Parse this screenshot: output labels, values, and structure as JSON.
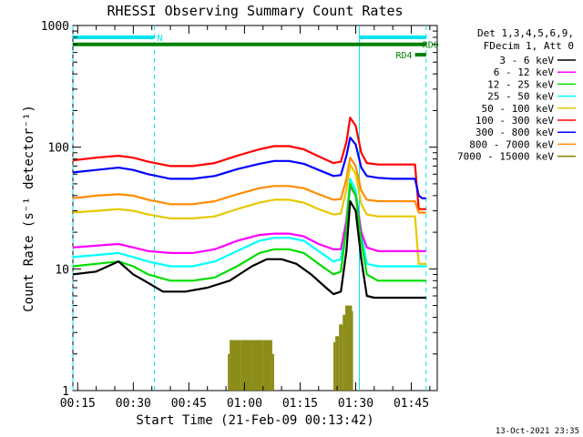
{
  "chart_data": {
    "type": "line",
    "title": "RHESSI Observing Summary Count Rates",
    "xlabel": "Start Time (21-Feb-09 00:13:42)",
    "ylabel": "Count Rate (s⁻¹ detector⁻¹)",
    "y_scale": "log",
    "ylim": [
      1,
      1000
    ],
    "y_ticks": [
      1,
      10,
      100,
      1000
    ],
    "y_tick_labels": [
      "1",
      "10",
      "100",
      "1000"
    ],
    "xlim_minutes": [
      13.7,
      112
    ],
    "x_ticks_minutes": [
      15,
      30,
      45,
      60,
      75,
      90,
      105
    ],
    "x_tick_labels": [
      "00:15",
      "00:30",
      "00:45",
      "01:00",
      "01:15",
      "01:30",
      "01:45"
    ],
    "grid": false,
    "legend_placement": "right, outside plot",
    "legend_header": [
      "Det 1,3,4,5,6,9,",
      "FDecim 1, Att 0"
    ],
    "series": [
      {
        "name": "3 - 6 keV",
        "color": "#000000",
        "x": [
          13.7,
          20,
          26,
          30,
          33,
          38,
          44,
          50,
          56,
          62,
          66,
          70,
          74,
          78,
          82,
          84,
          86,
          87.5,
          88.5,
          90,
          91.5,
          93,
          95,
          98,
          102,
          106,
          108,
          109
        ],
        "y": [
          9,
          9.5,
          11.5,
          9,
          8,
          6.5,
          6.5,
          7,
          8,
          10.5,
          12,
          12,
          11,
          9,
          7,
          6.2,
          6.5,
          14,
          36,
          30,
          12,
          6,
          5.8,
          5.8,
          5.8,
          5.8,
          5.8,
          5.8
        ]
      },
      {
        "name": "6 - 12 keV",
        "color": "#ff00ff",
        "x": [
          13.7,
          20,
          26,
          30,
          34,
          40,
          46,
          52,
          58,
          64,
          68,
          72,
          76,
          80,
          84,
          86,
          87.5,
          88.5,
          90,
          91.5,
          93,
          96,
          100,
          104,
          108,
          109
        ],
        "y": [
          15,
          15.5,
          16,
          15,
          14,
          13.5,
          13.5,
          14.5,
          17,
          19,
          19.5,
          19.5,
          18.5,
          16,
          14.5,
          14.5,
          25,
          48,
          40,
          20,
          15,
          14,
          14,
          14,
          14,
          14
        ]
      },
      {
        "name": "12 - 25 keV",
        "color": "#00dd00",
        "x": [
          13.7,
          20,
          26,
          30,
          34,
          40,
          46,
          52,
          58,
          64,
          68,
          72,
          76,
          80,
          84,
          86,
          87.5,
          88.5,
          90,
          91.5,
          93,
          96,
          100,
          104,
          108,
          109
        ],
        "y": [
          10.5,
          11,
          11.5,
          10.5,
          9,
          8,
          8,
          8.5,
          10.5,
          13.5,
          14.5,
          14.5,
          13.5,
          11,
          9,
          9.5,
          22,
          50,
          40,
          17,
          9,
          8,
          8,
          8,
          8,
          8
        ]
      },
      {
        "name": "25 - 50 keV",
        "color": "#00ffff",
        "x": [
          13.7,
          20,
          26,
          30,
          34,
          40,
          46,
          52,
          58,
          64,
          68,
          72,
          76,
          80,
          84,
          86,
          87.5,
          88.5,
          90,
          91.5,
          93,
          96,
          100,
          104,
          108,
          109
        ],
        "y": [
          12.5,
          13,
          13.5,
          12.5,
          11.5,
          10.5,
          10.5,
          11.5,
          14,
          17,
          18,
          18,
          17,
          14,
          11.5,
          12,
          25,
          55,
          44,
          20,
          11,
          10.5,
          10.5,
          10.5,
          10.5,
          10.5
        ]
      },
      {
        "name": "50 - 100 keV",
        "color": "#e6c800",
        "x": [
          13.7,
          20,
          26,
          30,
          34,
          40,
          46,
          52,
          58,
          64,
          68,
          72,
          76,
          80,
          84,
          86,
          87.5,
          88.5,
          90,
          91.5,
          93,
          96,
          100,
          104,
          106,
          107,
          108,
          109
        ],
        "y": [
          29,
          30,
          31,
          30,
          28,
          26,
          26,
          27,
          31,
          35,
          37,
          37,
          35,
          31,
          28,
          28.5,
          45,
          72,
          60,
          34,
          28,
          27,
          27,
          27,
          27,
          11,
          11,
          11
        ]
      },
      {
        "name": "100 - 300 keV",
        "color": "#ff0000",
        "x": [
          13.7,
          20,
          26,
          30,
          34,
          40,
          46,
          52,
          58,
          64,
          68,
          72,
          76,
          80,
          84,
          86,
          87.5,
          88.5,
          90,
          91.5,
          93,
          96,
          100,
          104,
          106,
          107,
          108,
          109
        ],
        "y": [
          78,
          82,
          85,
          82,
          76,
          70,
          70,
          74,
          85,
          96,
          102,
          102,
          96,
          84,
          74,
          76,
          110,
          175,
          150,
          90,
          74,
          72,
          72,
          72,
          72,
          31,
          31,
          31
        ]
      },
      {
        "name": "300 - 800 keV",
        "color": "#0000ff",
        "x": [
          13.7,
          20,
          26,
          30,
          34,
          40,
          46,
          52,
          58,
          64,
          68,
          72,
          76,
          80,
          84,
          86,
          87.5,
          88.5,
          90,
          91.5,
          93,
          96,
          100,
          104,
          106,
          107,
          108,
          109
        ],
        "y": [
          62,
          65,
          68,
          65,
          60,
          55,
          55,
          58,
          66,
          73,
          77,
          77,
          73,
          65,
          58,
          59,
          85,
          120,
          105,
          68,
          58,
          56,
          55,
          55,
          55,
          40,
          38,
          38
        ]
      },
      {
        "name": "800 - 7000 keV",
        "color": "#ff8c00",
        "x": [
          13.7,
          20,
          26,
          30,
          34,
          40,
          46,
          52,
          58,
          64,
          68,
          72,
          76,
          80,
          84,
          86,
          87.5,
          88.5,
          90,
          91.5,
          93,
          96,
          100,
          104,
          106,
          107,
          108,
          109
        ],
        "y": [
          38,
          40,
          41,
          40,
          37,
          34,
          34,
          36,
          41,
          46,
          48,
          48,
          46,
          41,
          37,
          37.5,
          55,
          82,
          70,
          44,
          37,
          36,
          36,
          36,
          36,
          29,
          29,
          29
        ]
      },
      {
        "name": "7000 - 15000 keV",
        "color": "#808000",
        "x": [
          13.7,
          55.5,
          56,
          59,
          62,
          65,
          67.5,
          68,
          84,
          84.5,
          85.5,
          86.5,
          87.2,
          87.8,
          88.3,
          89,
          89.3,
          109
        ],
        "y": [
          1,
          1,
          2,
          2.6,
          2.6,
          2.6,
          2,
          1,
          1,
          2.5,
          2.8,
          3.5,
          4.2,
          5,
          5,
          4.5,
          1,
          1
        ]
      }
    ],
    "annotations": [
      {
        "label": "N",
        "color": "#00e5ee",
        "x_start_minutes": 13.7,
        "x_end_minutes": 35.7,
        "y": 800
      },
      {
        "label": "RD0",
        "color": "#008000",
        "x_start_minutes": 13.7,
        "x_end_minutes": 109,
        "y": 700
      },
      {
        "label": "RD4",
        "color": "#008000",
        "x_start_minutes": 106,
        "x_end_minutes": 109,
        "y": 575
      },
      {
        "label": "",
        "color": "#00e5ee",
        "x_start_minutes": 91,
        "x_end_minutes": 109,
        "y": 800
      }
    ],
    "vertical_markers": [
      {
        "x_minutes": 13.7,
        "color": "#00e5ee",
        "style": "dashed"
      },
      {
        "x_minutes": 35.7,
        "color": "#00e5ee",
        "style": "dashed"
      },
      {
        "x_minutes": 91,
        "color": "#00e5ee",
        "style": "solid"
      },
      {
        "x_minutes": 109,
        "color": "#00e5ee",
        "style": "dashed"
      }
    ]
  },
  "footer": {
    "timestamp": "13-Oct-2021 23:35"
  }
}
